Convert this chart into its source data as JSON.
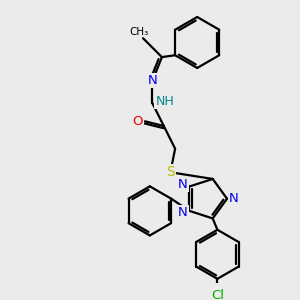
{
  "bg_color": "#ebebeb",
  "atom_colors": {
    "N": "#0000ee",
    "O": "#ee0000",
    "S": "#bbbb00",
    "Cl": "#00aa00",
    "C": "#000000",
    "H": "#008888"
  },
  "lw": 1.6
}
